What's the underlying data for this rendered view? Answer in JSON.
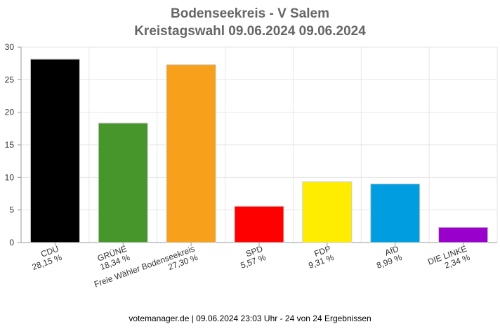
{
  "chart_data": {
    "type": "bar",
    "title": "Bodenseekreis - V Salem",
    "subtitle": "Kreistagswahl 09.06.2024 09.06.2024",
    "categories": [
      "CDU",
      "GRÜNE",
      "Freie Wähler Bodenseekreis",
      "SPD",
      "FDP",
      "AfD",
      "DIE LINKE"
    ],
    "values": [
      28.15,
      18.34,
      27.3,
      5.57,
      9.31,
      8.99,
      2.34
    ],
    "value_labels": [
      "28,15 %",
      "18,34 %",
      "27,30 %",
      "5,57 %",
      "9,31 %",
      "8,99 %",
      "2,34 %"
    ],
    "colors": [
      "#000000",
      "#46962b",
      "#f7a01c",
      "#ff0000",
      "#ffed00",
      "#009ee0",
      "#9900cc"
    ],
    "ylim": [
      0,
      30
    ],
    "yticks": [
      "0",
      "5",
      "10",
      "15",
      "20",
      "25",
      "30"
    ],
    "grid": true,
    "xlabel": "",
    "ylabel": ""
  },
  "footer": "votemanager.de | 09.06.2024 23:03 Uhr - 24 von 24 Ergebnissen"
}
